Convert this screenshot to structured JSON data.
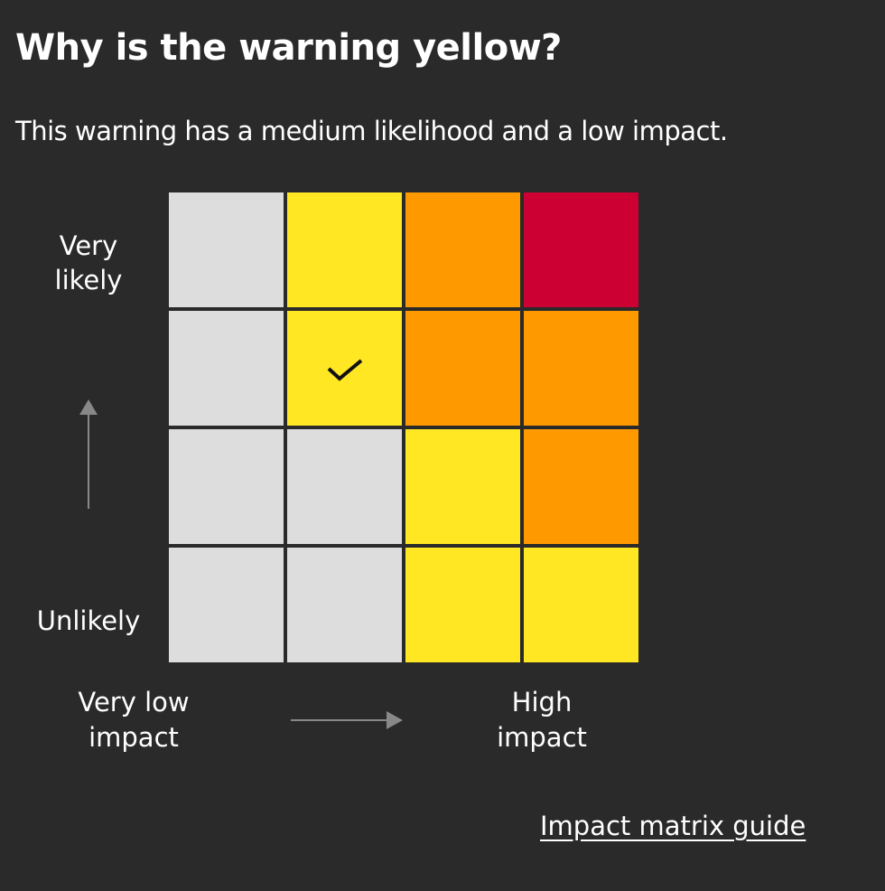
{
  "title": "Why is the warning yellow?",
  "description": "This warning has a medium likelihood and a low impact.",
  "axes": {
    "y_top": "Very likely",
    "y_bottom": "Unlikely",
    "x_left": "Very low impact",
    "x_right": "High impact"
  },
  "colors": {
    "grey": "#dddddd",
    "yellow": "#ffe723",
    "orange": "#ff9900",
    "red": "#cc0033",
    "background": "#2a2a2a"
  },
  "matrix": [
    [
      "grey",
      "yellow",
      "orange",
      "red"
    ],
    [
      "grey",
      "yellow",
      "orange",
      "orange"
    ],
    [
      "grey",
      "grey",
      "yellow",
      "orange"
    ],
    [
      "grey",
      "grey",
      "yellow",
      "yellow"
    ]
  ],
  "selected": {
    "row": 1,
    "col": 1,
    "icon": "check-icon"
  },
  "link": "Impact matrix guide"
}
